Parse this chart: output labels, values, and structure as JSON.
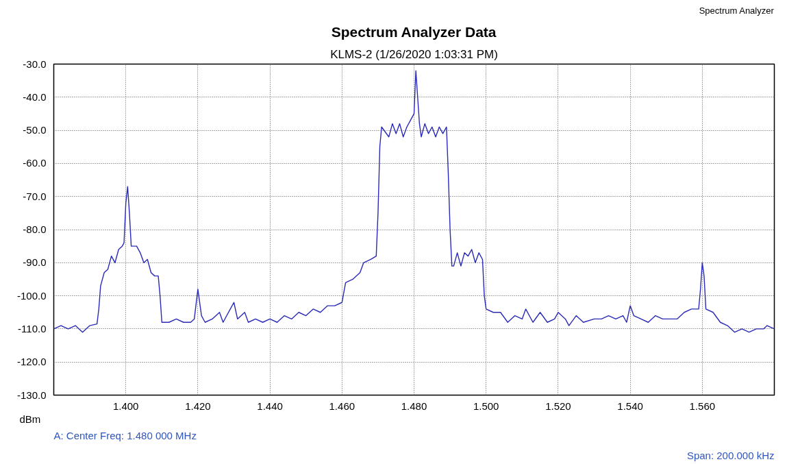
{
  "chart_data": {
    "type": "line",
    "title": "Spectrum Analyzer Data",
    "subtitle": "KLMS-2 (1/26/2020 1:03:31 PM)",
    "ylabel": "dBm",
    "annotations": [
      "A: Center Freq: 1.480 000 MHz",
      "Span: 200.000 kHz",
      "Spectrum Analyzer"
    ],
    "x": [
      1.38,
      1.382,
      1.384,
      1.386,
      1.388,
      1.39,
      1.392,
      1.3925,
      1.393,
      1.394,
      1.395,
      1.396,
      1.397,
      1.398,
      1.399,
      1.3995,
      1.4,
      1.4005,
      1.401,
      1.4015,
      1.403,
      1.404,
      1.405,
      1.406,
      1.407,
      1.408,
      1.409,
      1.4095,
      1.41,
      1.412,
      1.414,
      1.416,
      1.418,
      1.419,
      1.42,
      1.421,
      1.422,
      1.424,
      1.426,
      1.427,
      1.429,
      1.43,
      1.431,
      1.433,
      1.434,
      1.436,
      1.438,
      1.44,
      1.442,
      1.444,
      1.446,
      1.448,
      1.45,
      1.452,
      1.454,
      1.456,
      1.458,
      1.46,
      1.461,
      1.463,
      1.465,
      1.466,
      1.468,
      1.4695,
      1.47,
      1.4705,
      1.471,
      1.473,
      1.474,
      1.475,
      1.476,
      1.477,
      1.478,
      1.479,
      1.48,
      1.4805,
      1.481,
      1.4815,
      1.482,
      1.483,
      1.484,
      1.485,
      1.486,
      1.487,
      1.488,
      1.489,
      1.4895,
      1.49,
      1.4905,
      1.491,
      1.492,
      1.493,
      1.494,
      1.495,
      1.496,
      1.497,
      1.498,
      1.499,
      1.4995,
      1.5,
      1.502,
      1.504,
      1.506,
      1.508,
      1.51,
      1.511,
      1.513,
      1.515,
      1.517,
      1.519,
      1.52,
      1.522,
      1.523,
      1.525,
      1.527,
      1.53,
      1.532,
      1.534,
      1.536,
      1.538,
      1.539,
      1.54,
      1.541,
      1.543,
      1.545,
      1.547,
      1.549,
      1.551,
      1.553,
      1.555,
      1.557,
      1.559,
      1.5595,
      1.56,
      1.5605,
      1.561,
      1.563,
      1.565,
      1.567,
      1.569,
      1.571,
      1.573,
      1.575,
      1.577,
      1.578,
      1.58
    ],
    "series": [
      {
        "color": "#2a2ab8",
        "values": [
          -110,
          -109,
          -110,
          -109,
          -111,
          -109,
          -108.5,
          -104,
          -97,
          -93,
          -92,
          -88,
          -90,
          -86,
          -85,
          -84,
          -72,
          -67,
          -75,
          -85,
          -85,
          -87,
          -90,
          -89,
          -93,
          -94,
          -94,
          -100,
          -108,
          -108,
          -107,
          -108,
          -108,
          -107,
          -98,
          -106,
          -108,
          -107,
          -105,
          -108,
          -104,
          -102,
          -107,
          -105,
          -108,
          -107,
          -108,
          -107,
          -108,
          -106,
          -107,
          -105,
          -106,
          -104,
          -105,
          -103,
          -103,
          -102,
          -96,
          -95,
          -93,
          -90,
          -89,
          -88,
          -75,
          -55,
          -49,
          -52,
          -48,
          -51,
          -48,
          -52,
          -49,
          -47,
          -45,
          -32,
          -40,
          -48,
          -52,
          -48,
          -51,
          -49,
          -52,
          -49,
          -51,
          -49,
          -63,
          -80,
          -91,
          -91,
          -87,
          -91,
          -87,
          -88,
          -86,
          -90,
          -87,
          -89,
          -100,
          -104,
          -105,
          -105,
          -108,
          -106,
          -107,
          -104,
          -108,
          -105,
          -108,
          -107,
          -105,
          -107,
          -109,
          -106,
          -108,
          -107,
          -107,
          -106,
          -107,
          -106,
          -108,
          -103,
          -106,
          -107,
          -108,
          -106,
          -107,
          -107,
          -107,
          -105,
          -104,
          -104,
          -98,
          -90,
          -94,
          -104,
          -105,
          -108,
          -109,
          -111,
          -110,
          -111,
          -110,
          -110,
          -109,
          -110
        ]
      }
    ],
    "xlim": [
      1.38,
      1.58
    ],
    "xticks": [
      {
        "value": 1.38,
        "label": null
      },
      {
        "value": 1.4,
        "label": "1.400"
      },
      {
        "value": 1.42,
        "label": "1.420"
      },
      {
        "value": 1.44,
        "label": "1.440"
      },
      {
        "value": 1.46,
        "label": "1.460"
      },
      {
        "value": 1.48,
        "label": "1.480"
      },
      {
        "value": 1.5,
        "label": "1.500"
      },
      {
        "value": 1.52,
        "label": "1.520"
      },
      {
        "value": 1.54,
        "label": "1.540"
      },
      {
        "value": 1.56,
        "label": "1.560"
      }
    ],
    "ylim": [
      -130,
      -30
    ],
    "yticks": [
      {
        "value": -30,
        "label": "-30.0"
      },
      {
        "value": -40,
        "label": "-40.0"
      },
      {
        "value": -50,
        "label": "-50.0"
      },
      {
        "value": -60,
        "label": "-60.0"
      },
      {
        "value": -70,
        "label": "-70.0"
      },
      {
        "value": -80,
        "label": "-80.0"
      },
      {
        "value": -90,
        "label": "-90.0"
      },
      {
        "value": -100,
        "label": "-100.0"
      },
      {
        "value": -110,
        "label": "-110.0"
      },
      {
        "value": -120,
        "label": "-120.0"
      },
      {
        "value": -130,
        "label": "-130.0"
      }
    ],
    "grid": true,
    "line_style": "solid"
  }
}
